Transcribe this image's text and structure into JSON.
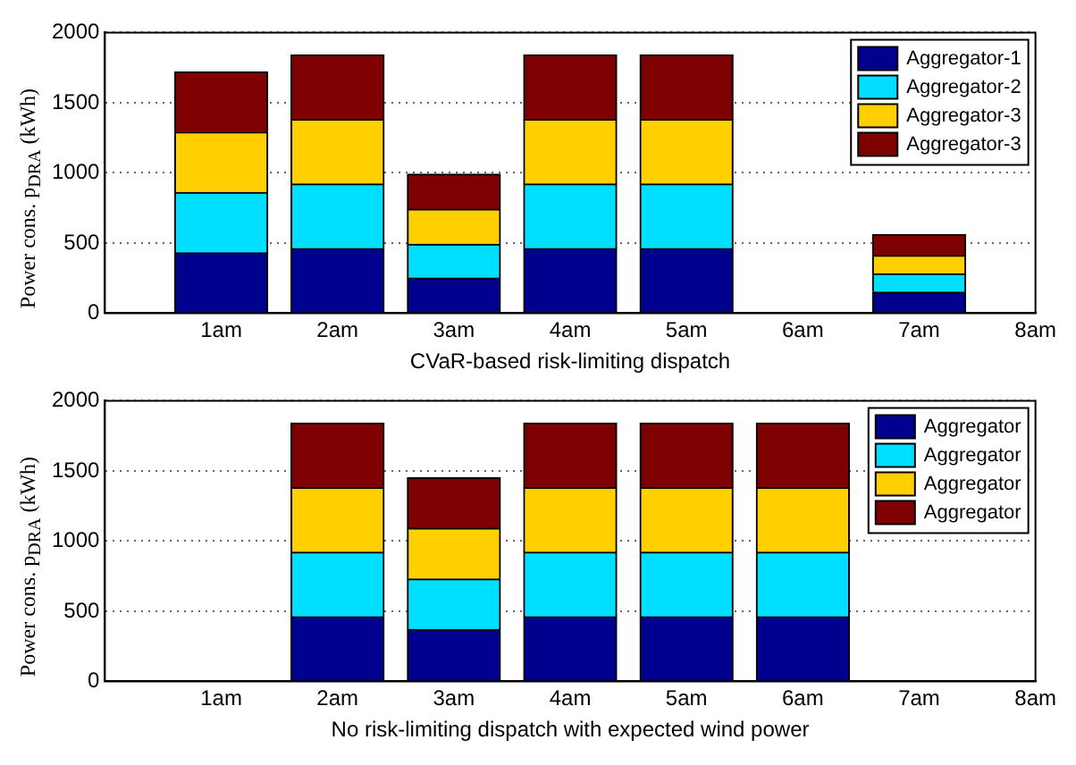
{
  "chart_data": [
    {
      "type": "bar",
      "stacked": true,
      "xlabel": "CVaR-based risk-limiting dispatch",
      "ylabel": "Power cons. p$_{DRA}$ (kWh)",
      "x": [
        1,
        2,
        3,
        4,
        5,
        7
      ],
      "xlim": [
        0,
        8
      ],
      "xticks": [
        {
          "value": 1,
          "label": "1am"
        },
        {
          "value": 2,
          "label": "2am"
        },
        {
          "value": 3,
          "label": "3am"
        },
        {
          "value": 4,
          "label": "4am"
        },
        {
          "value": 5,
          "label": "5am"
        },
        {
          "value": 6,
          "label": "6am"
        },
        {
          "value": 7,
          "label": "7am"
        },
        {
          "value": 8,
          "label": "8am"
        }
      ],
      "ylim": [
        0,
        2000
      ],
      "yticks": [
        0,
        500,
        1000,
        1500,
        2000
      ],
      "grid": "y",
      "legend": "top right",
      "series": [
        {
          "name": "Aggregator-1",
          "color": "#00008f",
          "values": [
            430,
            460,
            250,
            460,
            460,
            150
          ]
        },
        {
          "name": "Aggregator-2",
          "color": "#00dfff",
          "values": [
            430,
            460,
            240,
            460,
            460,
            130
          ]
        },
        {
          "name": "Aggregator-3",
          "color": "#ffcf00",
          "values": [
            430,
            460,
            250,
            460,
            460,
            130
          ]
        },
        {
          "name": "Aggregator-3",
          "color": "#7f0000",
          "values": [
            430,
            460,
            250,
            460,
            460,
            150
          ]
        }
      ]
    },
    {
      "type": "bar",
      "stacked": true,
      "xlabel": "No risk-limiting dispatch with expected wind power",
      "ylabel": "Power cons. p$_{DRA}$ (kWh)",
      "x": [
        2,
        3,
        4,
        5,
        6
      ],
      "xlim": [
        0,
        8
      ],
      "xticks": [
        {
          "value": 1,
          "label": "1am"
        },
        {
          "value": 2,
          "label": "2am"
        },
        {
          "value": 3,
          "label": "3am"
        },
        {
          "value": 4,
          "label": "4am"
        },
        {
          "value": 5,
          "label": "5am"
        },
        {
          "value": 6,
          "label": "6am"
        },
        {
          "value": 7,
          "label": "7am"
        },
        {
          "value": 8,
          "label": "8am"
        }
      ],
      "ylim": [
        0,
        2000
      ],
      "yticks": [
        0,
        500,
        1000,
        1500,
        2000
      ],
      "grid": "y",
      "legend": "top right",
      "series": [
        {
          "name": "Aggregator",
          "color": "#00008f",
          "values": [
            460,
            370,
            460,
            460,
            460
          ]
        },
        {
          "name": "Aggregator",
          "color": "#00dfff",
          "values": [
            460,
            360,
            460,
            460,
            460
          ]
        },
        {
          "name": "Aggregator",
          "color": "#ffcf00",
          "values": [
            460,
            360,
            460,
            460,
            460
          ]
        },
        {
          "name": "Aggregator",
          "color": "#7f0000",
          "values": [
            460,
            360,
            460,
            460,
            460
          ]
        }
      ]
    }
  ]
}
